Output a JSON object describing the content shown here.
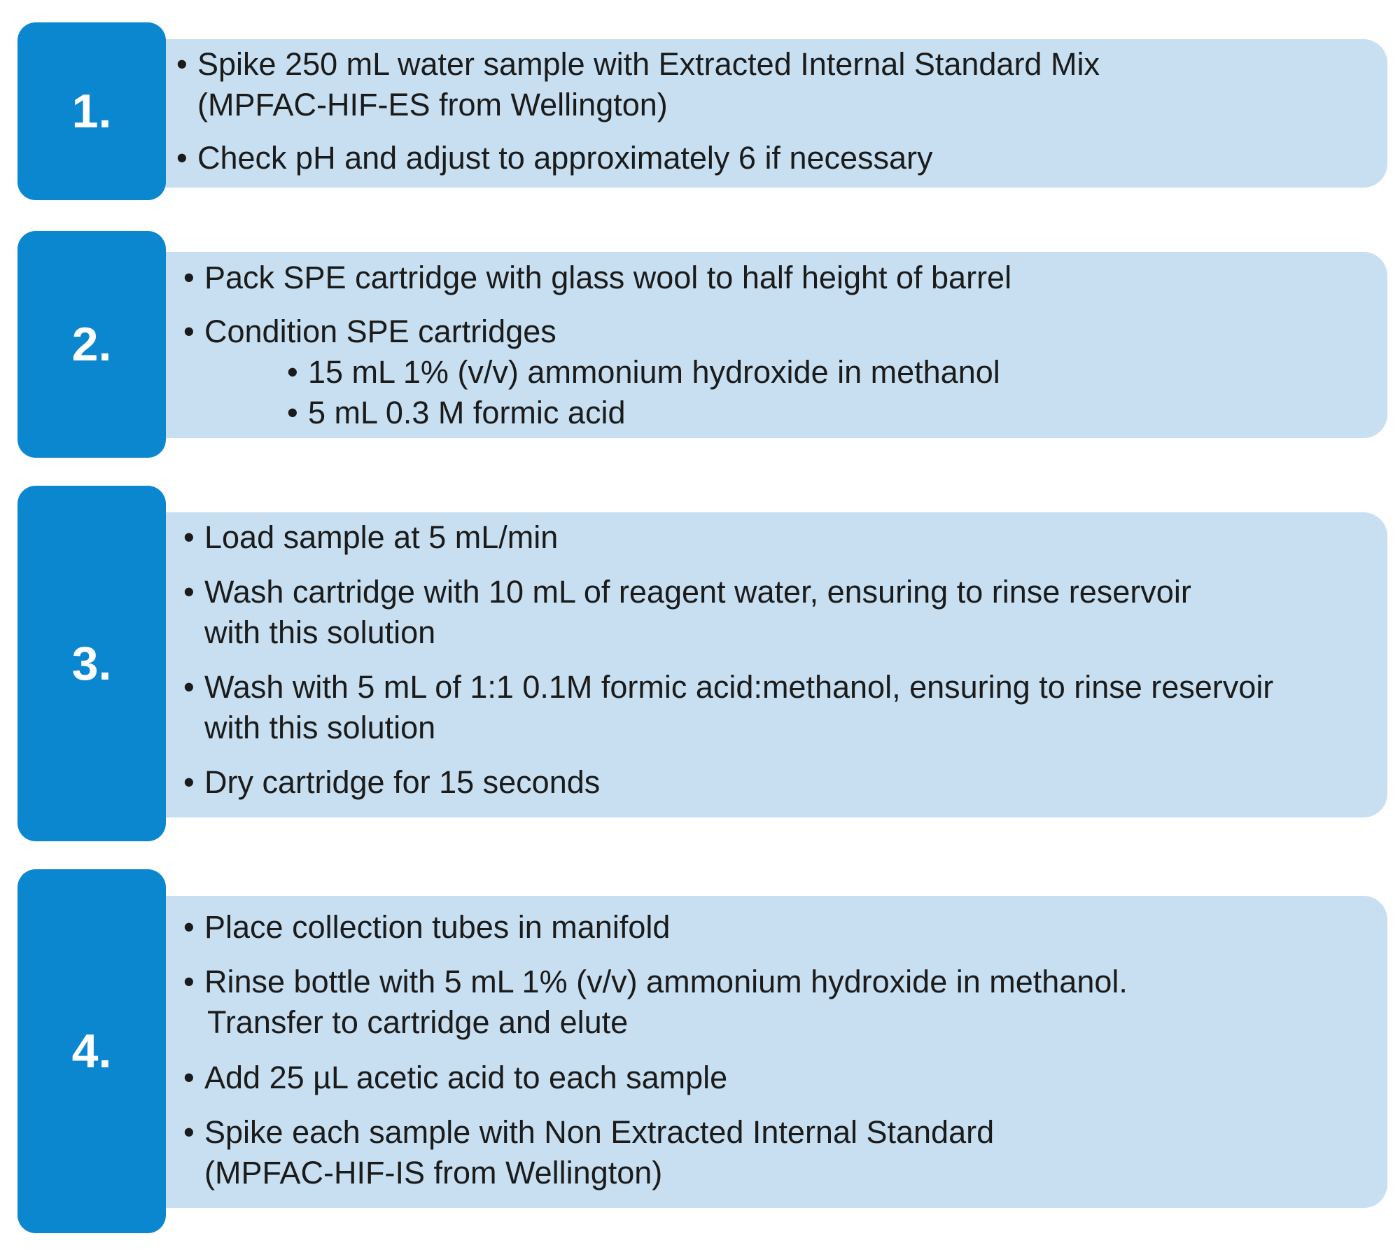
{
  "steps": [
    {
      "number": "1.",
      "items": [
        {
          "text": "Spike 250 mL water sample with Extracted Internal Standard Mix",
          "continuation": "(MPFAC-HIF-ES from Wellington)"
        },
        {
          "text": "Check pH and adjust to approximately 6 if necessary"
        }
      ]
    },
    {
      "number": "2.",
      "items": [
        {
          "text": "Pack SPE cartridge with glass wool to half height of barrel"
        },
        {
          "text": "Condition SPE cartridges",
          "subitems": [
            "15 mL 1% (v/v) ammonium hydroxide in methanol",
            "5 mL 0.3 M formic acid"
          ]
        }
      ]
    },
    {
      "number": "3.",
      "items": [
        {
          "text": "Load sample at 5 mL/min"
        },
        {
          "text": "Wash cartridge with 10 mL of reagent water, ensuring to rinse reservoir",
          "continuation": "with this solution"
        },
        {
          "text": "Wash with 5 mL of 1:1 0.1M formic acid:methanol, ensuring to rinse reservoir",
          "continuation": "with this solution"
        },
        {
          "text": "Dry cartridge for 15 seconds"
        }
      ]
    },
    {
      "number": "4.",
      "items": [
        {
          "text": "Place collection tubes in manifold"
        },
        {
          "text": "Rinse bottle with 5 mL 1% (v/v) ammonium hydroxide in methanol.",
          "continuation": "Transfer to cartridge and elute"
        },
        {
          "text": "Add 25 µL acetic acid to each sample"
        },
        {
          "text": "Spike each sample with Non Extracted Internal Standard",
          "continuation": "(MPFAC-HIF-IS from Wellington)"
        }
      ]
    }
  ]
}
